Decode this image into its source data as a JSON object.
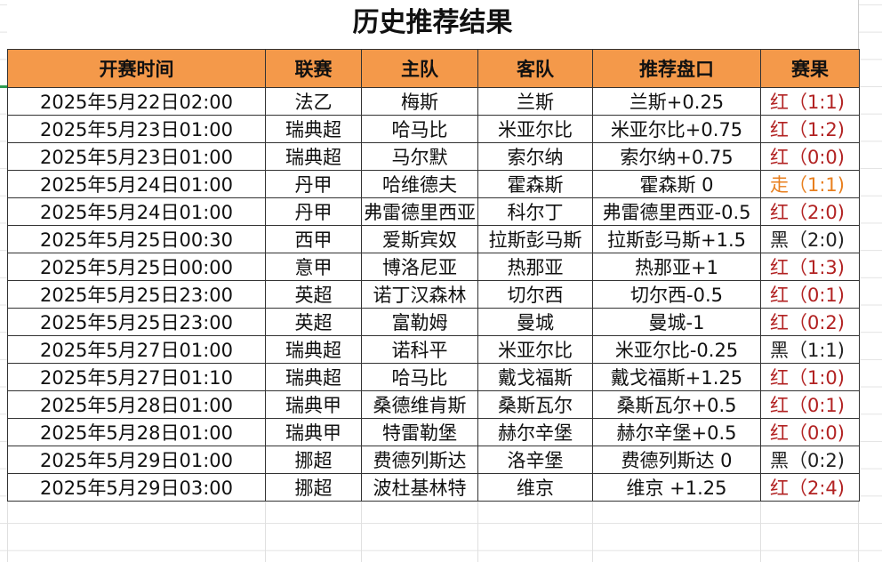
{
  "title": "历史推荐结果",
  "headers": [
    "开赛时间",
    "联赛",
    "主队",
    "客队",
    "推荐盘口",
    "赛果"
  ],
  "colors": {
    "header_bg": "#f4994a",
    "red": "#b22222",
    "push": "#e87f1e",
    "black": "#222222"
  },
  "rows": [
    {
      "time": "2025年5月22日02:00",
      "league": "法乙",
      "home": "梅斯",
      "away": "兰斯",
      "pick": "兰斯+0.25",
      "result": "红（1:1)",
      "status": "red"
    },
    {
      "time": "2025年5月23日01:00",
      "league": "瑞典超",
      "home": "哈马比",
      "away": "米亚尔比",
      "pick": "米亚尔比+0.75",
      "result": "红（1:2)",
      "status": "red"
    },
    {
      "time": "2025年5月23日01:00",
      "league": "瑞典超",
      "home": "马尔默",
      "away": "索尔纳",
      "pick": "索尔纳+0.75",
      "result": "红（0:0)",
      "status": "red"
    },
    {
      "time": "2025年5月24日01:00",
      "league": "丹甲",
      "home": "哈维德夫",
      "away": "霍森斯",
      "pick": "霍森斯 0",
      "result": "走（1:1)",
      "status": "push"
    },
    {
      "time": "2025年5月24日01:00",
      "league": "丹甲",
      "home": "弗雷德里西亚",
      "away": "科尔丁",
      "pick": "弗雷德里西亚-0.5",
      "result": "红（2:0)",
      "status": "red"
    },
    {
      "time": "2025年5月25日00:30",
      "league": "西甲",
      "home": "爱斯宾奴",
      "away": "拉斯彭马斯",
      "pick": "拉斯彭马斯+1.5",
      "result": "黑（2:0)",
      "status": "black"
    },
    {
      "time": "2025年5月25日00:00",
      "league": "意甲",
      "home": "博洛尼亚",
      "away": "热那亚",
      "pick": "热那亚+1",
      "result": "红（1:3)",
      "status": "red"
    },
    {
      "time": "2025年5月25日23:00",
      "league": "英超",
      "home": "诺丁汉森林",
      "away": "切尔西",
      "pick": "切尔西-0.5",
      "result": "红（0:1)",
      "status": "red"
    },
    {
      "time": "2025年5月25日23:00",
      "league": "英超",
      "home": "富勒姆",
      "away": "曼城",
      "pick": "曼城-1",
      "result": "红（0:2)",
      "status": "red"
    },
    {
      "time": "2025年5月27日01:00",
      "league": "瑞典超",
      "home": "诺科平",
      "away": "米亚尔比",
      "pick": "米亚尔比-0.25",
      "result": "黑（1:1)",
      "status": "black"
    },
    {
      "time": "2025年5月27日01:10",
      "league": "瑞典超",
      "home": "哈马比",
      "away": "戴戈福斯",
      "pick": "戴戈福斯+1.25",
      "result": "红（1:0)",
      "status": "red"
    },
    {
      "time": "2025年5月28日01:00",
      "league": "瑞典甲",
      "home": "桑德维肯斯",
      "away": "桑斯瓦尔",
      "pick": "桑斯瓦尔+0.5",
      "result": "红（0:1)",
      "status": "red"
    },
    {
      "time": "2025年5月28日01:00",
      "league": "瑞典甲",
      "home": "特雷勒堡",
      "away": "赫尔辛堡",
      "pick": "赫尔辛堡+0.5",
      "result": "红（0:0)",
      "status": "red"
    },
    {
      "time": "2025年5月29日01:00",
      "league": "挪超",
      "home": "费德列斯达",
      "away": "洛辛堡",
      "pick": "费德列斯达 0",
      "result": "黑（0:2)",
      "status": "black"
    },
    {
      "time": "2025年5月29日03:00",
      "league": "挪超",
      "home": "波杜基林特",
      "away": "维京",
      "pick": "维京 +1.25",
      "result": "红（2:4)",
      "status": "red"
    }
  ]
}
